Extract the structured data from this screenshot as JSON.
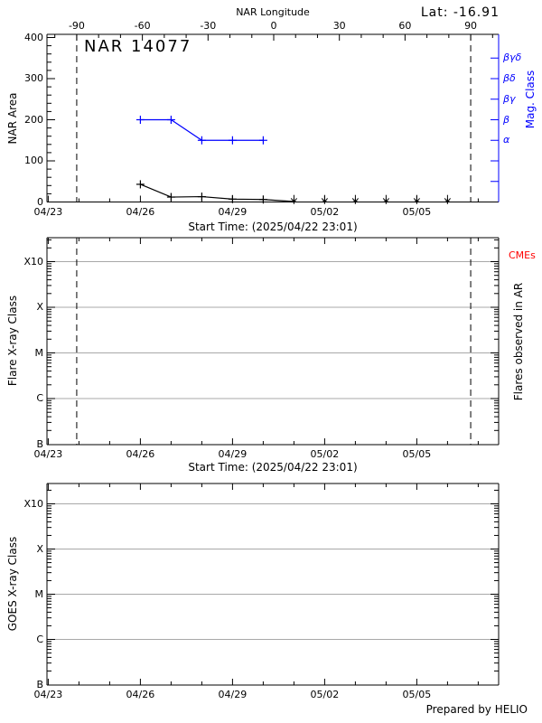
{
  "colors": {
    "accent_blue": "#0000ff",
    "grid_gray": "#a8a8a8",
    "cme_red": "#ff0000",
    "axis_black": "#000000"
  },
  "footer": {
    "prepared_by": "Prepared by HELIO"
  },
  "chart_data": [
    {
      "panel": "nar-area",
      "type": "line",
      "title": "NAR 14077",
      "lat_annotation": "Lat: -16.91",
      "xlabel": "Start Time: (2025/04/22 23:01)",
      "ylabel": "NAR Area",
      "ylim": [
        0,
        400
      ],
      "y_ticks": [
        0,
        100,
        200,
        300,
        400
      ],
      "y_minor_step": 20,
      "x_tick_labels": [
        "04/23",
        "04/26",
        "04/29",
        "05/02",
        "05/05"
      ],
      "x_major_every_days": 3,
      "x_axis_start": "2025/04/22 23:01",
      "top_axis": {
        "label": "NAR Longitude",
        "tick_values": [
          -90,
          -60,
          -30,
          0,
          30,
          60,
          90
        ],
        "minor_step": 10
      },
      "dashed_lines_longitude": [
        -90,
        90
      ],
      "right_axis": {
        "label": "Mag. Class",
        "color": "#0000ff",
        "tick_area_values": [
          50,
          100,
          150,
          200,
          250,
          300,
          350
        ],
        "labeled_ticks": [
          {
            "area": 150,
            "label": "α"
          },
          {
            "area": 200,
            "label": "β"
          },
          {
            "area": 250,
            "label": "βγ"
          },
          {
            "area": 300,
            "label": "βδ"
          },
          {
            "area": 350,
            "label": "βγδ"
          }
        ]
      },
      "series": [
        {
          "name": "nar-area",
          "color": "#000000",
          "marker": "plus",
          "dates": [
            "04/26",
            "04/27",
            "04/28",
            "04/29",
            "04/30"
          ],
          "day_index": [
            3,
            4,
            5,
            6,
            7
          ],
          "values": [
            43,
            12,
            13,
            7,
            6
          ]
        },
        {
          "name": "mag-class",
          "color": "#0000ff",
          "marker": "plus",
          "dates": [
            "04/26",
            "04/27",
            "04/28",
            "04/29",
            "04/30"
          ],
          "day_index": [
            3,
            4,
            5,
            6,
            7
          ],
          "values_area_scale": [
            200,
            200,
            150,
            150,
            150
          ],
          "values_class": [
            "β",
            "β",
            "α",
            "α",
            "α"
          ]
        }
      ],
      "zero_arrows": {
        "dates": [
          "05/01",
          "05/02",
          "05/03",
          "05/04",
          "05/05",
          "05/06"
        ],
        "day_index": [
          8,
          9,
          10,
          11,
          12,
          13
        ],
        "value": 0
      }
    },
    {
      "panel": "flare-xray",
      "type": "line",
      "xlabel": "Start Time: (2025/04/22 23:01)",
      "ylabel": "Flare X-ray Class",
      "y_tick_labels": [
        "B",
        "C",
        "M",
        "X",
        "X10"
      ],
      "x_tick_labels": [
        "04/23",
        "04/26",
        "04/29",
        "05/02",
        "05/05"
      ],
      "grid": true,
      "log_scale": true,
      "dashed_lines_longitude": [
        -90,
        90
      ],
      "right_label": "Flares observed in AR",
      "corner_label": {
        "text": "CMEs",
        "color": "#ff0000"
      },
      "series": []
    },
    {
      "panel": "goes-xray",
      "type": "line",
      "ylabel": "GOES X-ray Class",
      "y_tick_labels": [
        "B",
        "C",
        "M",
        "X",
        "X10"
      ],
      "x_tick_labels": [
        "04/23",
        "04/26",
        "04/29",
        "05/02",
        "05/05"
      ],
      "grid": true,
      "log_scale": true,
      "series": []
    }
  ]
}
